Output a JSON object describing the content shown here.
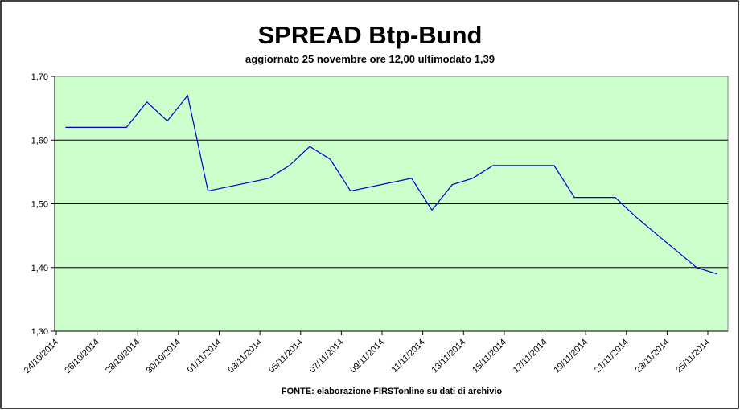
{
  "chart_data": {
    "type": "line",
    "title": "SPREAD Btp-Bund",
    "subtitle": "aggiornato 25 novembre ore 12,00  ultimodato  1,39",
    "footer": "FONTE: elaborazione FIRSTonline su dati di archivio",
    "x": [
      "24/10/2014",
      "27/10/2014",
      "28/10/2014",
      "29/10/2014",
      "30/10/2014",
      "31/10/2014",
      "03/11/2014",
      "04/11/2014",
      "05/11/2014",
      "06/11/2014",
      "07/11/2014",
      "10/11/2014",
      "11/11/2014",
      "12/11/2014",
      "13/11/2014",
      "14/11/2014",
      "17/11/2014",
      "18/11/2014",
      "19/11/2014",
      "20/11/2014",
      "21/11/2014",
      "24/11/2014",
      "25/11/2014"
    ],
    "series": [
      {
        "name": "Spread",
        "color": "#0000cc",
        "values": [
          1.62,
          1.62,
          1.66,
          1.63,
          1.67,
          1.52,
          1.54,
          1.56,
          1.59,
          1.57,
          1.52,
          1.54,
          1.49,
          1.53,
          1.54,
          1.56,
          1.56,
          1.51,
          1.51,
          1.51,
          1.48,
          1.4,
          1.39
        ]
      }
    ],
    "xlim": [
      "24/10/2014",
      "25/11/2014"
    ],
    "xticks": [
      "24/10/2014",
      "26/10/2014",
      "28/10/2014",
      "30/10/2014",
      "01/11/2014",
      "03/11/2014",
      "05/11/2014",
      "07/11/2014",
      "09/11/2014",
      "11/11/2014",
      "13/11/2014",
      "15/11/2014",
      "17/11/2014",
      "19/11/2014",
      "21/11/2014",
      "23/11/2014",
      "25/11/2014"
    ],
    "ylim": [
      1.3,
      1.7
    ],
    "yticks": [
      {
        "value": 1.3,
        "label": "1,30"
      },
      {
        "value": 1.4,
        "label": "1,40"
      },
      {
        "value": 1.5,
        "label": "1,50"
      },
      {
        "value": 1.6,
        "label": "1,60"
      },
      {
        "value": 1.7,
        "label": "1,70"
      }
    ],
    "grid": true,
    "plot_color": "#ccffcc"
  }
}
